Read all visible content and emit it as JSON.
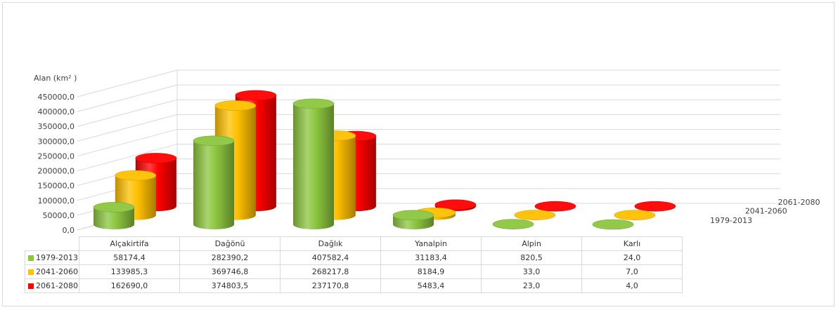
{
  "chart_data": {
    "type": "bar",
    "subtype": "3d-cylinder",
    "ylabel": "Alan (km² )",
    "ylim": [
      0,
      450000
    ],
    "y_ticks": [
      "0,0",
      "50000,0",
      "100000,0",
      "150000,0",
      "200000,0",
      "250000,0",
      "300000,0",
      "350000,0",
      "400000,0",
      "450000,0"
    ],
    "grid": true,
    "legend": "data-table",
    "categories": [
      "Alçakirtifa",
      "Dağönü",
      "Dağlık",
      "Yanalpin",
      "Alpin",
      "Karlı"
    ],
    "series": [
      {
        "name": "1979-2013",
        "color": "#8cc63f",
        "values": [
          58174.4,
          282390.2,
          407582.4,
          31183.4,
          820.5,
          24.0
        ],
        "labels": [
          "58174,4",
          "282390,2",
          "407582,4",
          "31183,4",
          "820,5",
          "24,0"
        ]
      },
      {
        "name": "2041-2060",
        "color": "#ffc000",
        "values": [
          133985.3,
          369746.8,
          268217.8,
          8184.9,
          33.0,
          7.0
        ],
        "labels": [
          "133985,3",
          "369746,8",
          "268217,8",
          "8184,9",
          "33,0",
          "7,0"
        ]
      },
      {
        "name": "2061-2080",
        "color": "#ff0000",
        "values": [
          162690.0,
          374803.5,
          237170.8,
          5483.4,
          23.0,
          4.0
        ],
        "labels": [
          "162690,0",
          "374803,5",
          "237170,8",
          "5483,4",
          "23,0",
          "4,0"
        ]
      }
    ]
  }
}
